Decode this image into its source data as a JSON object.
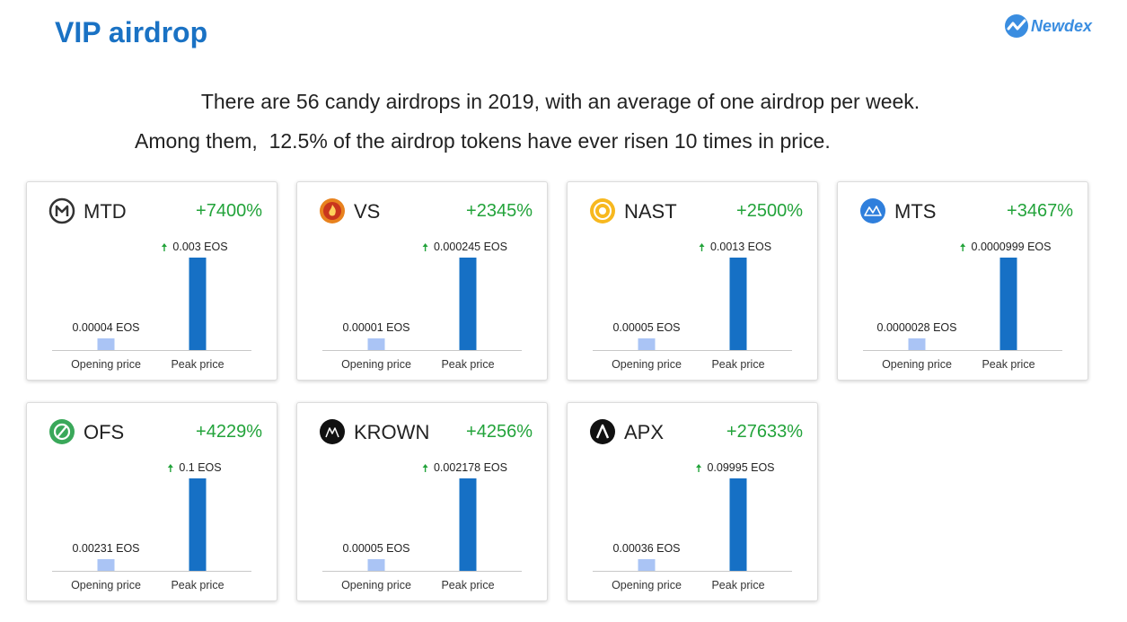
{
  "header": {
    "title": "VIP airdrop",
    "brand": "Newdex"
  },
  "intro": {
    "line1": "There are 56 candy airdrops in 2019, with an average of one airdrop per week.",
    "line2": "Among them,  12.5% of the airdrop tokens have ever risen 10 times in price."
  },
  "colors": {
    "opening_bar": "#aac4f5",
    "peak_bar": "#1670c5",
    "gain": "#22a33a",
    "arrow": "#22a33a",
    "title": "#1a72c4"
  },
  "chart_data": [
    {
      "type": "bar",
      "token": "MTD",
      "gain": "+7400%",
      "icon": "mtd-logo-icon",
      "categories": [
        "Opening price",
        "Peak price"
      ],
      "values": [
        4e-05,
        0.003
      ],
      "labels": [
        "0.00004 EOS",
        "0.003 EOS"
      ],
      "unit": "EOS"
    },
    {
      "type": "bar",
      "token": "VS",
      "gain": "+2345%",
      "icon": "vs-logo-icon",
      "categories": [
        "Opening price",
        "Peak price"
      ],
      "values": [
        1e-05,
        0.000245
      ],
      "labels": [
        "0.00001 EOS",
        "0.000245 EOS"
      ],
      "unit": "EOS"
    },
    {
      "type": "bar",
      "token": "NAST",
      "gain": "+2500%",
      "icon": "nast-logo-icon",
      "categories": [
        "Opening price",
        "Peak price"
      ],
      "values": [
        5e-05,
        0.0013
      ],
      "labels": [
        "0.00005 EOS",
        "0.0013 EOS"
      ],
      "unit": "EOS"
    },
    {
      "type": "bar",
      "token": "MTS",
      "gain": "+3467%",
      "icon": "mts-logo-icon",
      "categories": [
        "Opening price",
        "Peak price"
      ],
      "values": [
        2.8e-06,
        9.99e-05
      ],
      "labels": [
        "0.0000028 EOS",
        "0.0000999 EOS"
      ],
      "unit": "EOS"
    },
    {
      "type": "bar",
      "token": "OFS",
      "gain": "+4229%",
      "icon": "ofs-logo-icon",
      "categories": [
        "Opening price",
        "Peak price"
      ],
      "values": [
        0.00231,
        0.1
      ],
      "labels": [
        "0.00231 EOS",
        "0.1 EOS"
      ],
      "unit": "EOS"
    },
    {
      "type": "bar",
      "token": "KROWN",
      "gain": "+4256%",
      "icon": "krown-logo-icon",
      "categories": [
        "Opening price",
        "Peak price"
      ],
      "values": [
        5e-05,
        0.002178
      ],
      "labels": [
        "0.00005 EOS",
        "0.002178 EOS"
      ],
      "unit": "EOS"
    },
    {
      "type": "bar",
      "token": "APX",
      "gain": "+27633%",
      "icon": "apx-logo-icon",
      "categories": [
        "Opening price",
        "Peak price"
      ],
      "values": [
        0.00036,
        0.09995
      ],
      "labels": [
        "0.00036 EOS",
        "0.09995 EOS"
      ],
      "unit": "EOS"
    }
  ]
}
